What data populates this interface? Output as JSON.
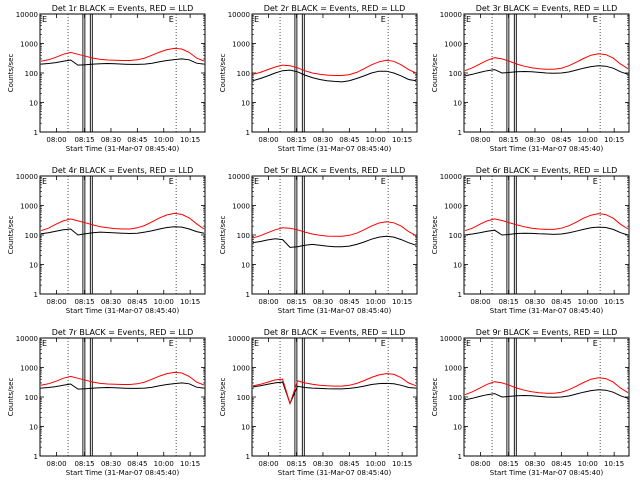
{
  "colors": {
    "events": "#000000",
    "lld": "#ff0000",
    "axes": "#000000",
    "background": "#ffffff"
  },
  "common": {
    "y_label": "Counts/sec",
    "x_label": "Start Time (31-Mar-07 08:45:40)",
    "x_ticks": [
      "08:00",
      "08:15",
      "08:30",
      "08:45",
      "10:00",
      "10:15"
    ],
    "y_ticks": [
      "1",
      "10",
      "100",
      "1000",
      "10000"
    ],
    "ylim": [
      1,
      10000
    ],
    "y_scale": "log",
    "marker_letters": [
      "E",
      "E"
    ]
  },
  "chart_data": [
    {
      "type": "line",
      "title": "Det 1r BLACK = Events, RED = LLD",
      "series": [
        {
          "name": "Events",
          "profile": [
            200,
            210,
            225,
            250,
            275,
            185,
            190,
            200,
            205,
            210,
            205,
            200,
            195,
            195,
            200,
            215,
            240,
            265,
            285,
            300,
            280,
            215,
            200
          ]
        },
        {
          "name": "LLD",
          "profile": [
            250,
            280,
            340,
            430,
            500,
            430,
            370,
            320,
            290,
            275,
            270,
            265,
            265,
            280,
            320,
            400,
            510,
            620,
            680,
            650,
            500,
            320,
            255
          ]
        }
      ]
    },
    {
      "type": "line",
      "title": "Det 2r BLACK = Events, RED = LLD",
      "series": [
        {
          "name": "Events",
          "profile": [
            55,
            65,
            80,
            100,
            120,
            125,
            110,
            85,
            70,
            60,
            55,
            52,
            50,
            55,
            65,
            80,
            100,
            115,
            115,
            100,
            80,
            60,
            55
          ]
        },
        {
          "name": "LLD",
          "profile": [
            90,
            105,
            130,
            160,
            185,
            175,
            150,
            120,
            100,
            90,
            85,
            82,
            82,
            88,
            105,
            140,
            190,
            240,
            270,
            250,
            190,
            130,
            100
          ]
        }
      ]
    },
    {
      "type": "line",
      "title": "Det 3r BLACK = Events, RED = LLD",
      "series": [
        {
          "name": "Events",
          "profile": [
            80,
            90,
            105,
            120,
            130,
            100,
            105,
            110,
            112,
            110,
            105,
            100,
            98,
            100,
            108,
            125,
            145,
            165,
            175,
            170,
            145,
            110,
            90
          ]
        },
        {
          "name": "LLD",
          "profile": [
            120,
            150,
            200,
            270,
            330,
            300,
            250,
            200,
            170,
            150,
            140,
            135,
            135,
            145,
            175,
            230,
            310,
            400,
            450,
            420,
            320,
            200,
            140
          ]
        }
      ]
    },
    {
      "type": "line",
      "title": "Det 4r BLACK = Events, RED = LLD",
      "series": [
        {
          "name": "Events",
          "profile": [
            110,
            120,
            135,
            150,
            160,
            100,
            110,
            120,
            125,
            122,
            118,
            115,
            112,
            115,
            125,
            140,
            160,
            180,
            190,
            185,
            160,
            130,
            115
          ]
        },
        {
          "name": "LLD",
          "profile": [
            140,
            170,
            230,
            300,
            350,
            300,
            260,
            220,
            190,
            175,
            165,
            160,
            160,
            175,
            210,
            280,
            380,
            480,
            540,
            500,
            380,
            240,
            160
          ]
        }
      ]
    },
    {
      "type": "line",
      "title": "Det 5r BLACK = Events, RED = LLD",
      "series": [
        {
          "name": "Events",
          "profile": [
            55,
            60,
            68,
            75,
            70,
            38,
            40,
            45,
            48,
            45,
            42,
            40,
            40,
            42,
            48,
            58,
            72,
            85,
            90,
            85,
            70,
            55,
            45
          ]
        },
        {
          "name": "LLD",
          "profile": [
            80,
            95,
            120,
            150,
            175,
            170,
            150,
            125,
            108,
            98,
            92,
            90,
            90,
            98,
            115,
            150,
            200,
            255,
            280,
            260,
            200,
            130,
            95
          ]
        }
      ]
    },
    {
      "type": "line",
      "title": "Det 6r BLACK = Events, RED = LLD",
      "series": [
        {
          "name": "Events",
          "profile": [
            100,
            108,
            120,
            135,
            145,
            100,
            105,
            112,
            115,
            113,
            110,
            108,
            105,
            108,
            118,
            135,
            155,
            175,
            185,
            180,
            155,
            120,
            100
          ]
        },
        {
          "name": "LLD",
          "profile": [
            140,
            170,
            230,
            300,
            350,
            310,
            260,
            220,
            190,
            170,
            160,
            155,
            155,
            170,
            205,
            270,
            370,
            470,
            530,
            490,
            370,
            230,
            160
          ]
        }
      ]
    },
    {
      "type": "line",
      "title": "Det 7r BLACK = Events, RED = LLD",
      "series": [
        {
          "name": "Events",
          "profile": [
            200,
            210,
            225,
            250,
            275,
            185,
            190,
            200,
            205,
            210,
            205,
            200,
            195,
            195,
            200,
            215,
            240,
            265,
            285,
            300,
            280,
            215,
            200
          ]
        },
        {
          "name": "LLD",
          "profile": [
            250,
            280,
            340,
            430,
            500,
            430,
            370,
            320,
            290,
            275,
            270,
            265,
            265,
            280,
            320,
            400,
            510,
            620,
            680,
            650,
            500,
            320,
            255
          ]
        }
      ]
    },
    {
      "type": "line",
      "title": "Det 8r BLACK = Events, RED = LLD",
      "series": [
        {
          "name": "Events",
          "profile": [
            220,
            240,
            270,
            300,
            320,
            60,
            230,
            210,
            200,
            195,
            190,
            188,
            188,
            195,
            210,
            235,
            265,
            285,
            290,
            280,
            250,
            210,
            200
          ]
        },
        {
          "name": "LLD",
          "profile": [
            240,
            270,
            320,
            380,
            400,
            60,
            350,
            300,
            270,
            250,
            240,
            235,
            235,
            250,
            290,
            360,
            460,
            560,
            620,
            590,
            450,
            300,
            240
          ]
        }
      ]
    },
    {
      "type": "line",
      "title": "Det 9r BLACK = Events, RED = LLD",
      "series": [
        {
          "name": "Events",
          "profile": [
            80,
            90,
            105,
            120,
            130,
            100,
            105,
            110,
            112,
            110,
            105,
            100,
            98,
            100,
            108,
            125,
            145,
            165,
            175,
            170,
            145,
            110,
            90
          ]
        },
        {
          "name": "LLD",
          "profile": [
            120,
            150,
            200,
            270,
            330,
            300,
            250,
            200,
            170,
            150,
            140,
            135,
            135,
            145,
            175,
            230,
            310,
            400,
            450,
            420,
            320,
            200,
            140
          ]
        }
      ]
    }
  ]
}
